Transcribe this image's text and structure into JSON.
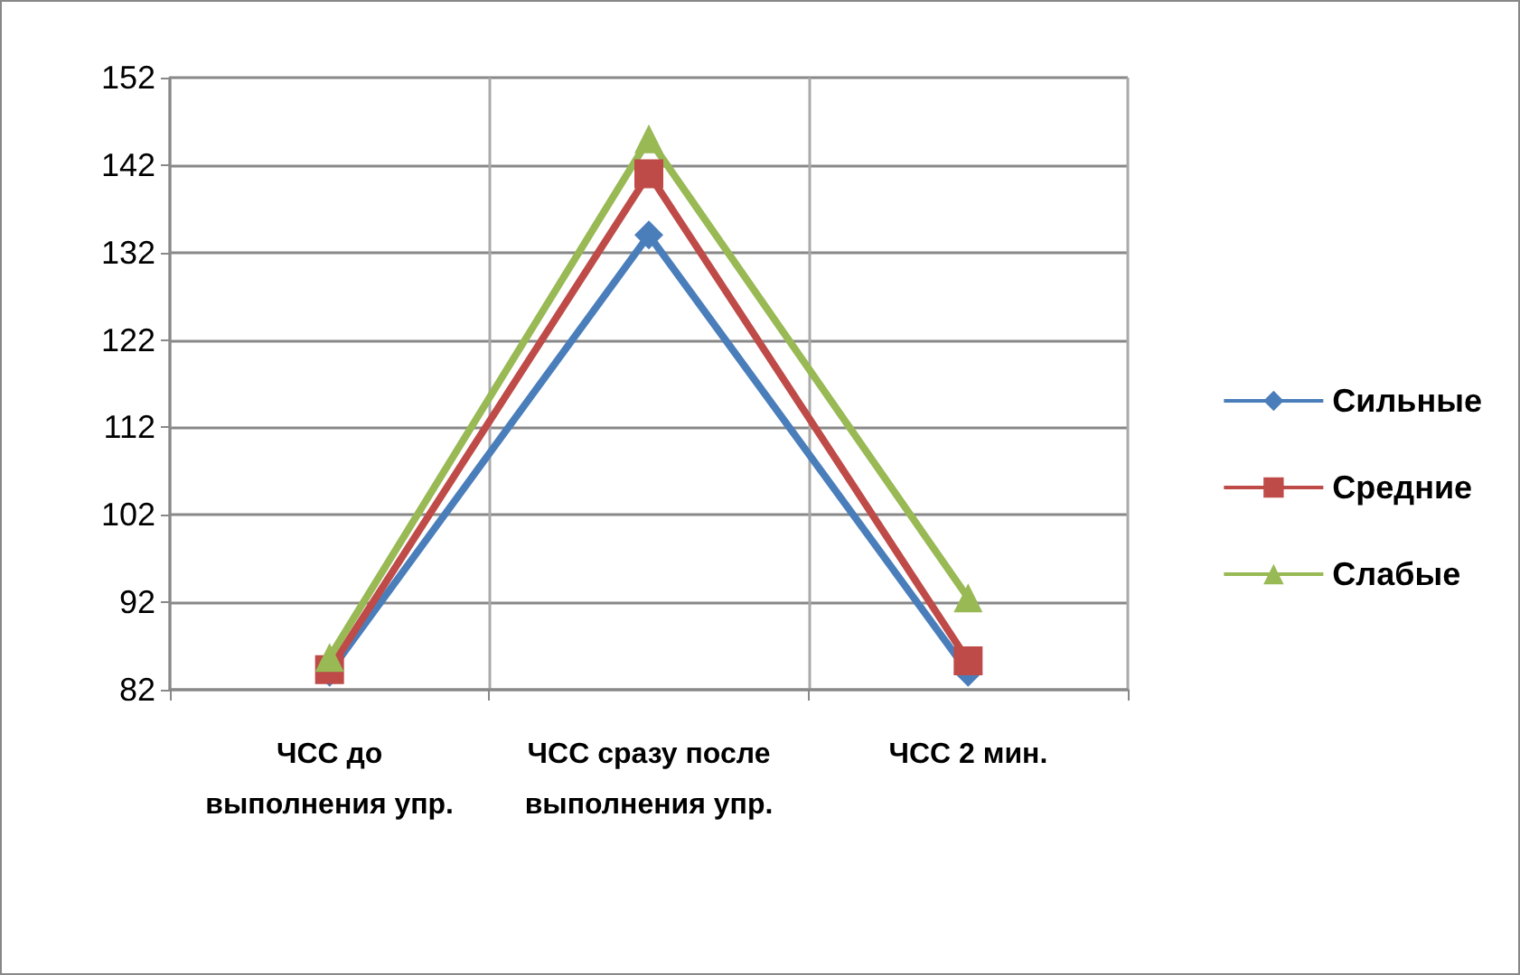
{
  "chart_data": {
    "type": "line",
    "categories": [
      "ЧСС до выполнения упр.",
      "ЧСС сразу после выполнения упр.",
      "ЧСС 2 мин."
    ],
    "series": [
      {
        "name": "Сильные",
        "color": "#4a7ebb",
        "marker": "diamond",
        "values": [
          84,
          134,
          84
        ]
      },
      {
        "name": "Средние",
        "color": "#be4b48",
        "marker": "square",
        "values": [
          84.3,
          141,
          85.3
        ]
      },
      {
        "name": "Слабые",
        "color": "#98b954",
        "marker": "triangle",
        "values": [
          85.7,
          145,
          92.5
        ]
      }
    ],
    "ylim": [
      82,
      152
    ],
    "yticks": [
      82,
      92,
      102,
      112,
      122,
      132,
      142,
      152
    ],
    "grid": true,
    "legend": "right"
  }
}
